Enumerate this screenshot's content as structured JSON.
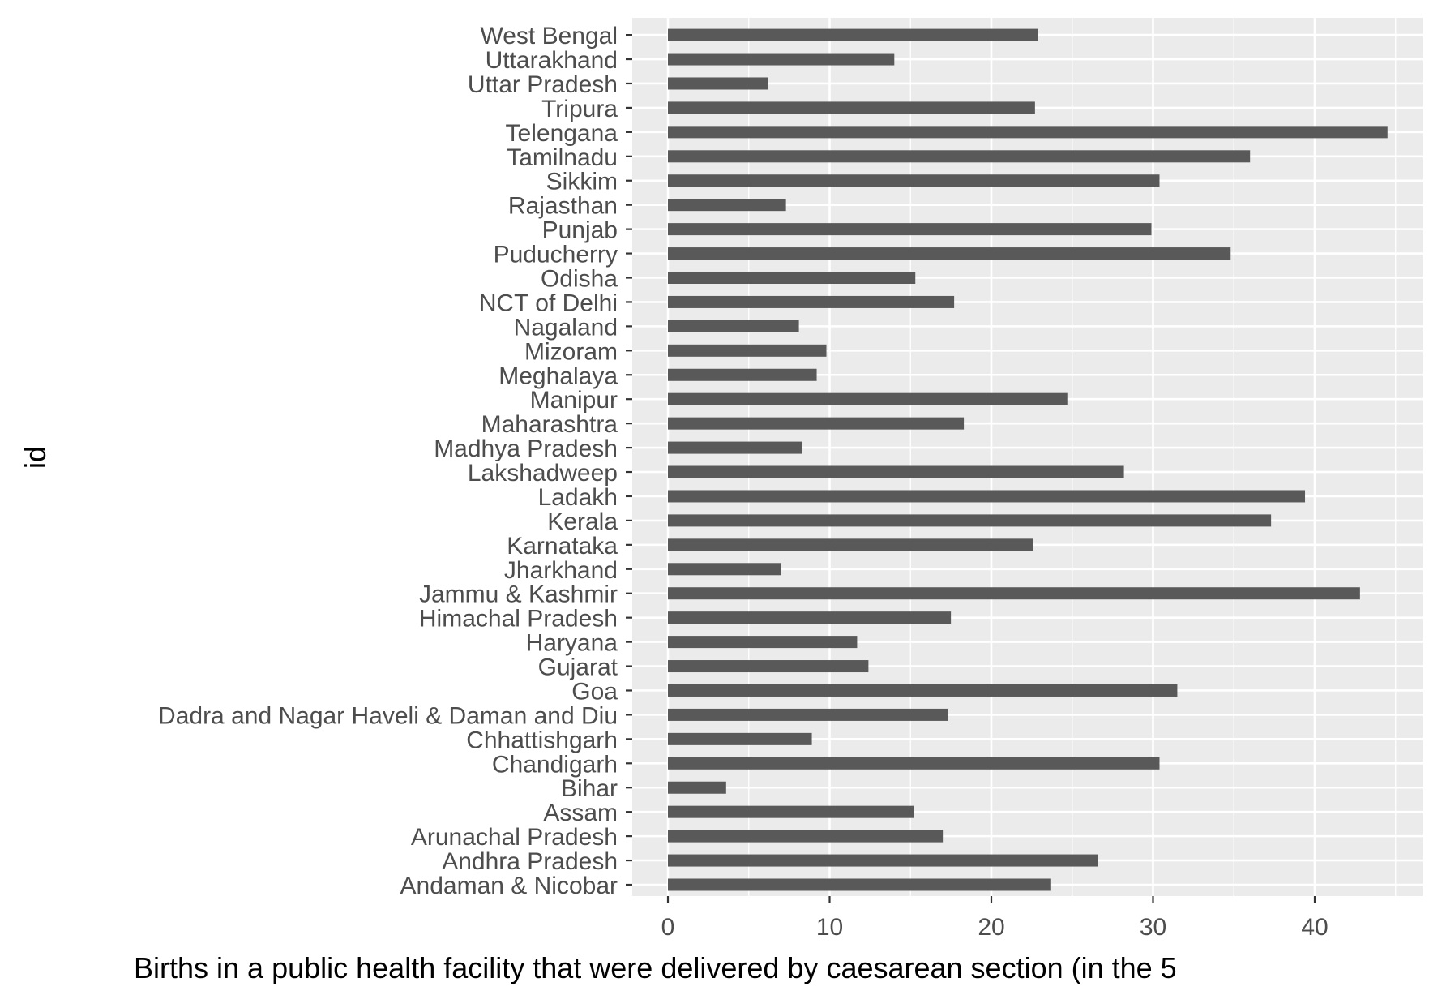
{
  "chart_data": {
    "type": "bar",
    "orientation": "horizontal",
    "categories": [
      "Andaman & Nicobar",
      "Andhra Pradesh",
      "Arunachal Pradesh",
      "Assam",
      "Bihar",
      "Chandigarh",
      "Chhattishgarh",
      "Dadra and Nagar Haveli & Daman and Diu",
      "Goa",
      "Gujarat",
      "Haryana",
      "Himachal Pradesh",
      "Jammu & Kashmir",
      "Jharkhand",
      "Karnataka",
      "Kerala",
      "Ladakh",
      "Lakshadweep",
      "Madhya Pradesh",
      "Maharashtra",
      "Manipur",
      "Meghalaya",
      "Mizoram",
      "Nagaland",
      "NCT of Delhi",
      "Odisha",
      "Puducherry",
      "Punjab",
      "Rajasthan",
      "Sikkim",
      "Tamilnadu",
      "Telengana",
      "Tripura",
      "Uttar Pradesh",
      "Uttarakhand",
      "West Bengal"
    ],
    "values": [
      23.7,
      26.6,
      17.0,
      15.2,
      3.6,
      30.4,
      8.9,
      17.3,
      31.5,
      12.4,
      11.7,
      17.5,
      42.8,
      7.0,
      22.6,
      37.3,
      39.4,
      28.2,
      8.3,
      18.3,
      24.7,
      9.2,
      9.8,
      8.1,
      17.7,
      15.3,
      34.8,
      29.9,
      7.3,
      30.4,
      36.0,
      44.5,
      22.7,
      6.2,
      14.0,
      22.9
    ],
    "xlabel": "Births in a public health facility that were delivered by caesarean section (in the 5",
    "ylabel": "id",
    "x_ticks": [
      0,
      10,
      20,
      30,
      40
    ],
    "x_tick_labels": [
      "0",
      "10",
      "20",
      "30",
      "40"
    ],
    "xlim": [
      -2.2,
      46.7
    ],
    "grid": true,
    "colors": {
      "panel_background": "#ebebeb",
      "grid_major": "#ffffff",
      "bar_fill": "#595959",
      "tick_text": "#4d4d4d",
      "axis_title": "#000000"
    }
  }
}
